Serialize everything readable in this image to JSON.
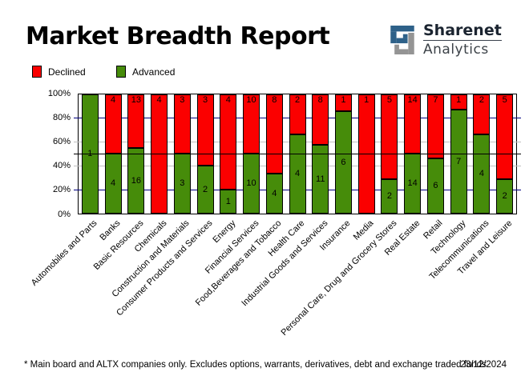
{
  "header": {
    "title": "Market Breadth Report"
  },
  "logo": {
    "line1": "Sharenet",
    "line2": "Analytics"
  },
  "legend": {
    "declined_label": "Declined",
    "advanced_label": "Advanced"
  },
  "chart_data": {
    "type": "bar",
    "stacked": true,
    "normalized": "percent-of-total",
    "title": "Market Breadth Report",
    "categories": [
      "Automobiles and Parts",
      "Banks",
      "Basic Resources",
      "Chemicals",
      "Construction and Materials",
      "Consumer Products and Services",
      "Energy",
      "Financial Services",
      "Food,Beverages and Tobacco",
      "Health Care",
      "Industrial Goods and Services",
      "Insurance",
      "Media",
      "Personal Care, Drug and Grocery Stores",
      "Real Estate",
      "Retail",
      "Technology",
      "Telecommunications",
      "Travel and Leisure"
    ],
    "series": [
      {
        "name": "Declined",
        "color": "#fb0000",
        "values": [
          0,
          4,
          13,
          4,
          3,
          3,
          4,
          10,
          8,
          2,
          8,
          1,
          1,
          5,
          14,
          7,
          1,
          2,
          5
        ]
      },
      {
        "name": "Advanced",
        "color": "#468c0a",
        "values": [
          1,
          4,
          16,
          0,
          3,
          2,
          1,
          10,
          4,
          4,
          11,
          6,
          0,
          2,
          14,
          6,
          7,
          4,
          2
        ]
      }
    ],
    "y_ticks": [
      "100%",
      "80%",
      "60%",
      "40%",
      "20%",
      "0%"
    ],
    "ylim": [
      0,
      100
    ],
    "legend_position": "top-left",
    "gridlines": [
      {
        "percent": 80,
        "color": "#000080",
        "layer": "behind"
      },
      {
        "percent": 60,
        "color": "#c0c0c0",
        "layer": "behind"
      },
      {
        "percent": 40,
        "color": "#c0c0c0",
        "layer": "behind"
      },
      {
        "percent": 20,
        "color": "#000080",
        "layer": "behind"
      },
      {
        "percent": 50,
        "color": "#000000",
        "layer": "front"
      }
    ]
  },
  "footer": {
    "note": "* Main board and ALTX companies only. Excludes options, warrants, derivatives, debt and exchange traded funds",
    "date": "23/12/2024"
  },
  "colors": {
    "declined": "#fb0000",
    "advanced": "#468c0a",
    "navy_grid": "#000080",
    "minor_grid": "#c0c0c0",
    "logo_blue": "#2e6189",
    "logo_gray": "#949494"
  }
}
